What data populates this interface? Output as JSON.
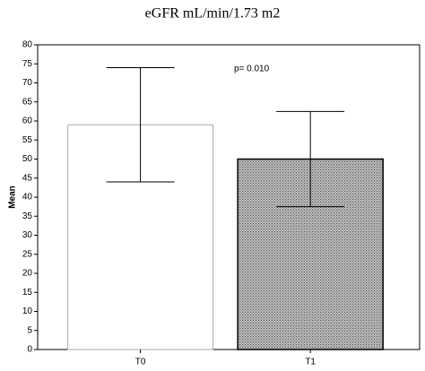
{
  "chart_data": {
    "type": "bar",
    "title": "eGFR mL/min/1.73 m2",
    "y_label": "Mean",
    "categories": [
      "T0",
      "T1"
    ],
    "values": [
      59,
      50
    ],
    "errors": [
      15,
      12.5
    ],
    "colors": [
      "#ffffff",
      "#a9a9a9"
    ],
    "annotation": "p= 0.010",
    "ylim": [
      0,
      80
    ],
    "yticks": [
      0,
      5,
      10,
      15,
      20,
      25,
      30,
      35,
      40,
      45,
      50,
      55,
      60,
      65,
      70,
      75,
      80
    ],
    "grid": false
  }
}
